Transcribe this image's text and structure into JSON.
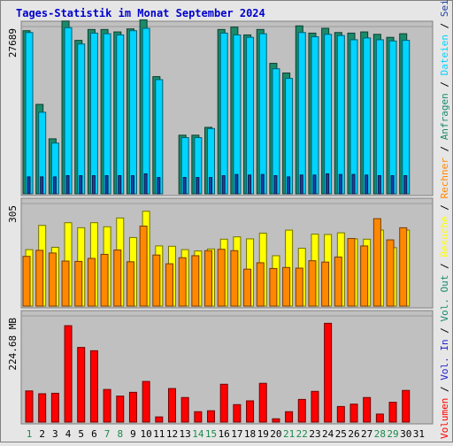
{
  "chart_data": [
    {
      "type": "bar",
      "title": "Tages-Statistik im Monat September 2024",
      "categories": [
        "1",
        "2",
        "3",
        "4",
        "5",
        "6",
        "7",
        "8",
        "9",
        "10",
        "11",
        "12",
        "13",
        "14",
        "15",
        "16",
        "17",
        "18",
        "19",
        "20",
        "21",
        "22",
        "23",
        "24",
        "25",
        "26",
        "27",
        "28",
        "29",
        "30",
        "31"
      ],
      "weekend_days": [
        "1",
        "7",
        "8",
        "14",
        "15",
        "21",
        "22",
        "28",
        "29"
      ],
      "ylim": [
        0,
        27689
      ],
      "ytick": "27689",
      "legend": [
        "Anfragen",
        "Dateien",
        "Seiten"
      ],
      "colors": {
        "Anfragen": "#1a8a6a",
        "Dateien": "#00d4ff",
        "Seiten": "#1f3fa0"
      },
      "series": [
        {
          "name": "Anfragen",
          "values": [
            27000,
            14800,
            9100,
            28600,
            25400,
            27200,
            27200,
            26800,
            27300,
            28800,
            19400,
            0,
            9700,
            9700,
            11000,
            27200,
            27600,
            26300,
            27200,
            21600,
            20000,
            27800,
            26600,
            27400,
            26700,
            26600,
            26800,
            26400,
            25900,
            26500,
            0
          ]
        },
        {
          "name": "Dateien",
          "values": [
            26700,
            13500,
            8400,
            27500,
            24800,
            26600,
            26500,
            26300,
            27000,
            27400,
            18900,
            0,
            9300,
            9300,
            10800,
            26600,
            26300,
            25900,
            26500,
            20700,
            19100,
            26700,
            26000,
            26400,
            26200,
            25500,
            25800,
            25500,
            25300,
            25400,
            0
          ]
        },
        {
          "name": "Seiten",
          "values": [
            2800,
            2800,
            2800,
            3000,
            3000,
            3000,
            3000,
            3000,
            3000,
            3300,
            2700,
            0,
            2700,
            2700,
            2700,
            3000,
            3200,
            3100,
            3200,
            3000,
            2800,
            3100,
            3100,
            3300,
            3200,
            3200,
            3100,
            3000,
            3000,
            3000,
            0
          ]
        }
      ]
    },
    {
      "type": "bar",
      "ylim": [
        0,
        305
      ],
      "ytick": "305",
      "legend": [
        "Besuche",
        "Rechner"
      ],
      "colors": {
        "Besuche": "#ffff00",
        "Rechner": "#ff8800"
      },
      "series": [
        {
          "name": "Besuche",
          "values": [
            168,
            240,
            175,
            248,
            233,
            248,
            236,
            262,
            204,
            282,
            179,
            178,
            168,
            164,
            170,
            199,
            206,
            200,
            217,
            150,
            226,
            172,
            214,
            213,
            218,
            200,
            199,
            226,
            174,
            226,
            0
          ]
        },
        {
          "name": "Rechner",
          "values": [
            148,
            166,
            158,
            134,
            133,
            142,
            154,
            167,
            132,
            238,
            152,
            126,
            144,
            150,
            165,
            169,
            165,
            110,
            129,
            112,
            115,
            113,
            135,
            131,
            146,
            201,
            179,
            260,
            197,
            233,
            0
          ]
        }
      ]
    },
    {
      "type": "bar",
      "ylim": [
        0,
        224.68
      ],
      "ytick": "224.68 MB",
      "legend": [
        "Volumen",
        "Vol. In",
        "Vol. Out"
      ],
      "colors": {
        "Volumen": "#ff0000",
        "Vol. In": "#2222cc",
        "Vol. Out": "#1a8a6a"
      },
      "series": [
        {
          "name": "Volumen",
          "values": [
            66,
            60,
            61,
            204,
            158,
            151,
            69,
            55,
            63,
            86,
            11,
            71,
            52,
            22,
            24,
            80,
            37,
            45,
            82,
            7,
            22,
            48,
            65,
            209,
            33,
            38,
            52,
            17,
            42,
            67,
            0
          ]
        }
      ]
    }
  ],
  "colors": {
    "background": "#e6e6e6",
    "plot_bg": "#c0c0c0",
    "title": "#0000cc",
    "weekend_label": "#1a8a4a",
    "weekday_label": "#000000"
  }
}
